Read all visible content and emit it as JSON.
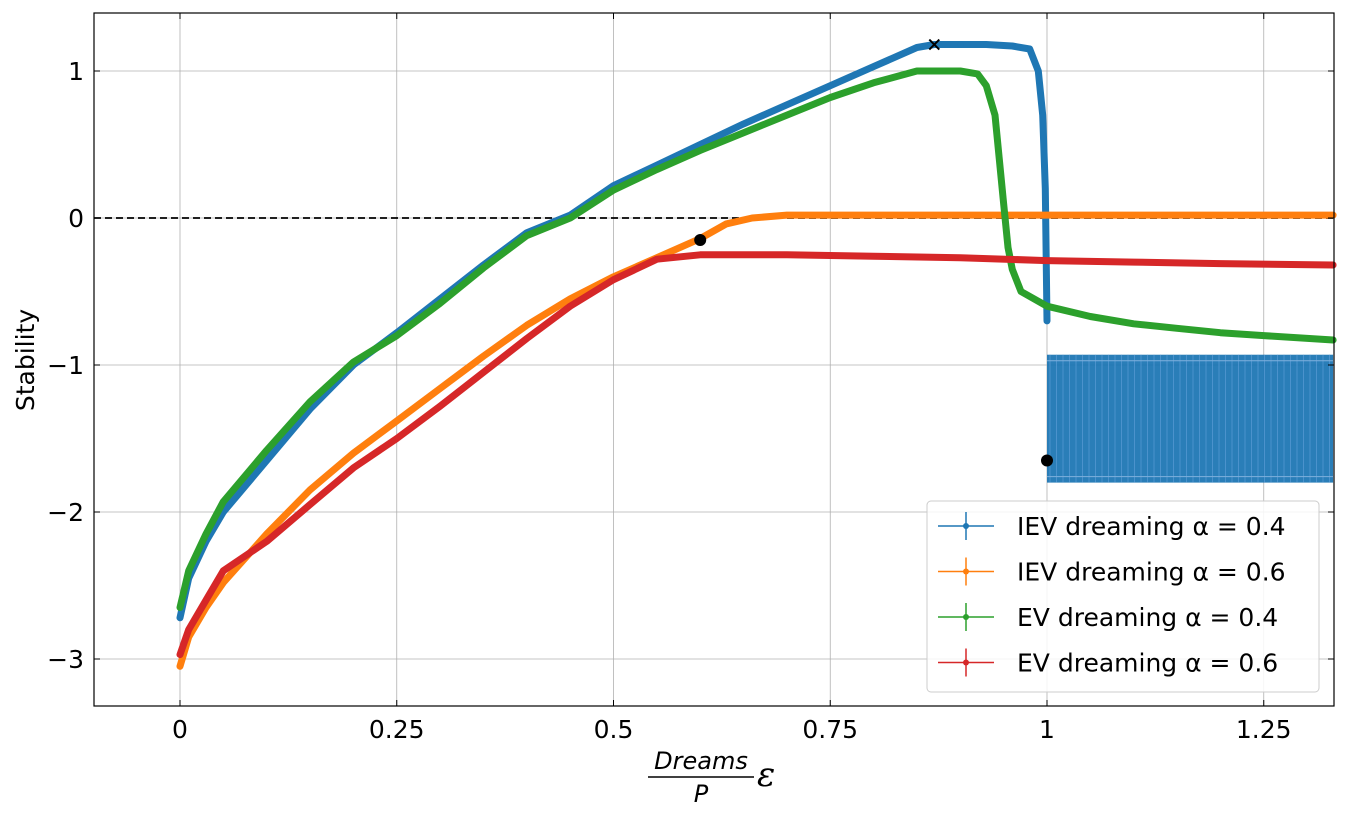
{
  "chart_data": {
    "type": "line",
    "title": "",
    "ylabel": "Stability",
    "xlabel": {
      "numerator": "Dreams",
      "denominator": "P",
      "symbol": "ε"
    },
    "xlim": [
      -0.1,
      1.33
    ],
    "ylim": [
      -3.3,
      1.4
    ],
    "x_ticks": [
      0,
      0.25,
      0.5,
      0.75,
      1,
      1.25
    ],
    "x_tick_labels": [
      "0",
      "0.25",
      "0.5",
      "0.75",
      "1",
      "1.25"
    ],
    "y_ticks": [
      -3,
      -2,
      -1,
      0,
      1
    ],
    "y_tick_labels": [
      "−3",
      "−2",
      "−1",
      "0",
      "1"
    ],
    "grid": true,
    "reference_line": {
      "y": 0,
      "style": "dashed",
      "color": "#000000"
    },
    "legend_position": "bottom-right",
    "series": [
      {
        "name": "IEV dreaming α = 0.4",
        "legend_prefix": "IEV dreaming ",
        "legend_math": "α = 0.4",
        "color": "#1f77b4",
        "x": [
          0,
          0.01,
          0.03,
          0.05,
          0.1,
          0.15,
          0.2,
          0.25,
          0.3,
          0.35,
          0.4,
          0.45,
          0.5,
          0.55,
          0.6,
          0.65,
          0.7,
          0.75,
          0.8,
          0.85,
          0.87,
          0.9,
          0.93,
          0.96,
          0.98,
          0.99,
          0.995,
          0.998,
          1.0
        ],
        "y": [
          -2.72,
          -2.45,
          -2.2,
          -2.0,
          -1.65,
          -1.3,
          -1.0,
          -0.78,
          -0.55,
          -0.32,
          -0.1,
          0.02,
          0.22,
          0.36,
          0.5,
          0.64,
          0.77,
          0.9,
          1.03,
          1.16,
          1.18,
          1.18,
          1.18,
          1.17,
          1.15,
          1.0,
          0.7,
          0.2,
          -0.7
        ],
        "noise_band": {
          "x_start": 1.0,
          "x_end": 1.33,
          "y_low": -1.8,
          "y_high": -0.93
        }
      },
      {
        "name": "IEV dreaming α = 0.6",
        "legend_prefix": "IEV dreaming ",
        "legend_math": "α = 0.6",
        "color": "#ff7f0e",
        "x": [
          0,
          0.01,
          0.03,
          0.05,
          0.1,
          0.15,
          0.2,
          0.25,
          0.3,
          0.35,
          0.4,
          0.45,
          0.5,
          0.55,
          0.6,
          0.63,
          0.66,
          0.7,
          0.75,
          0.8,
          0.9,
          1.0,
          1.1,
          1.2,
          1.33
        ],
        "y": [
          -3.05,
          -2.85,
          -2.65,
          -2.48,
          -2.15,
          -1.85,
          -1.6,
          -1.38,
          -1.16,
          -0.94,
          -0.73,
          -0.55,
          -0.4,
          -0.27,
          -0.14,
          -0.04,
          0.0,
          0.02,
          0.02,
          0.02,
          0.02,
          0.02,
          0.02,
          0.02,
          0.02
        ]
      },
      {
        "name": "EV dreaming α = 0.4",
        "legend_prefix": "EV dreaming ",
        "legend_math": "α = 0.4",
        "color": "#2ca02c",
        "x": [
          0,
          0.01,
          0.03,
          0.05,
          0.1,
          0.15,
          0.2,
          0.25,
          0.3,
          0.35,
          0.4,
          0.45,
          0.5,
          0.55,
          0.6,
          0.65,
          0.7,
          0.75,
          0.8,
          0.85,
          0.9,
          0.92,
          0.93,
          0.94,
          0.945,
          0.95,
          0.955,
          0.96,
          0.97,
          1.0,
          1.05,
          1.1,
          1.15,
          1.2,
          1.25,
          1.33
        ],
        "y": [
          -2.65,
          -2.4,
          -2.15,
          -1.93,
          -1.58,
          -1.25,
          -0.98,
          -0.8,
          -0.58,
          -0.34,
          -0.12,
          0.0,
          0.19,
          0.33,
          0.46,
          0.58,
          0.7,
          0.82,
          0.92,
          1.0,
          1.0,
          0.98,
          0.9,
          0.7,
          0.4,
          0.1,
          -0.2,
          -0.35,
          -0.5,
          -0.6,
          -0.67,
          -0.72,
          -0.75,
          -0.78,
          -0.8,
          -0.83
        ]
      },
      {
        "name": "EV dreaming α = 0.6",
        "legend_prefix": "EV dreaming ",
        "legend_math": "α = 0.6",
        "color": "#d62728",
        "x": [
          0,
          0.01,
          0.03,
          0.05,
          0.1,
          0.15,
          0.2,
          0.25,
          0.3,
          0.35,
          0.4,
          0.45,
          0.5,
          0.55,
          0.6,
          0.7,
          0.8,
          0.9,
          1.0,
          1.1,
          1.2,
          1.33
        ],
        "y": [
          -2.97,
          -2.8,
          -2.6,
          -2.4,
          -2.2,
          -1.95,
          -1.7,
          -1.5,
          -1.28,
          -1.05,
          -0.82,
          -0.6,
          -0.42,
          -0.28,
          -0.25,
          -0.25,
          -0.26,
          -0.27,
          -0.29,
          -0.3,
          -0.31,
          -0.32
        ]
      }
    ],
    "markers": [
      {
        "label": "IEV α=0.4 maximum",
        "x": 0.87,
        "y": 1.18,
        "symbol": "x",
        "color": "#000000"
      },
      {
        "label": "IEV α=0.6 reference point",
        "x": 0.6,
        "y": -0.15,
        "symbol": "dot",
        "color": "#000000"
      },
      {
        "label": "IEV α=0.4 transition point",
        "x": 1.0,
        "y": -1.65,
        "symbol": "dot",
        "color": "#000000"
      }
    ]
  }
}
